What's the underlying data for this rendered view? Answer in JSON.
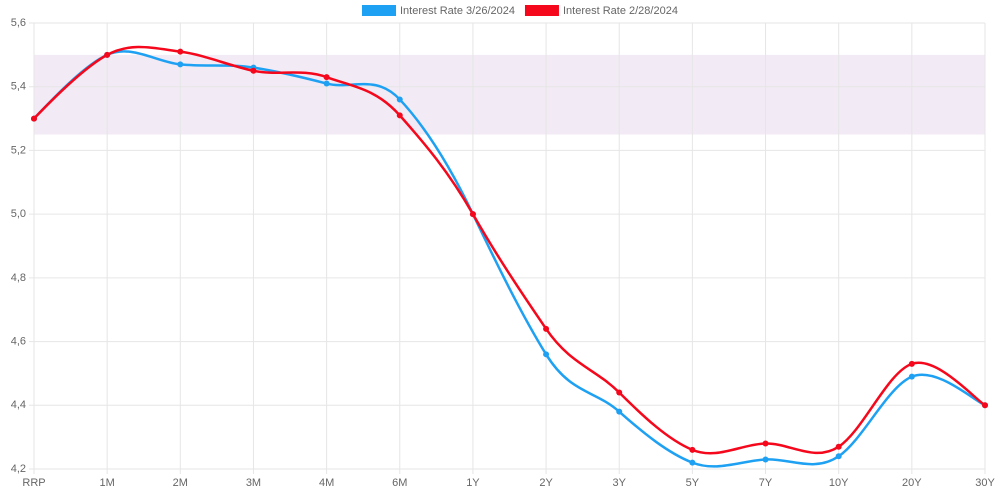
{
  "chart_data": {
    "type": "line",
    "categories": [
      "RRP",
      "1M",
      "2M",
      "3M",
      "4M",
      "6M",
      "1Y",
      "2Y",
      "3Y",
      "5Y",
      "7Y",
      "10Y",
      "20Y",
      "30Y"
    ],
    "series": [
      {
        "name": "Interest Rate 3/26/2024",
        "color": "#1ea1f2",
        "values": [
          5.3,
          5.5,
          5.47,
          5.46,
          5.41,
          5.36,
          5.0,
          4.56,
          4.38,
          4.22,
          4.23,
          4.24,
          4.49,
          4.4
        ]
      },
      {
        "name": "Interest Rate 2/28/2024",
        "color": "#f5081c",
        "values": [
          5.3,
          5.5,
          5.51,
          5.45,
          5.43,
          5.31,
          5.0,
          4.64,
          4.44,
          4.26,
          4.28,
          4.27,
          4.53,
          4.4
        ]
      }
    ],
    "band": {
      "from": 5.25,
      "to": 5.5,
      "color": "#f2eaf5"
    },
    "ylim": [
      4.2,
      5.6
    ],
    "yticks": [
      {
        "value": 4.2,
        "label": "4,2"
      },
      {
        "value": 4.4,
        "label": "4,4"
      },
      {
        "value": 4.6,
        "label": "4,6"
      },
      {
        "value": 4.8,
        "label": "4,8"
      },
      {
        "value": 5.0,
        "label": "5,0"
      },
      {
        "value": 5.2,
        "label": "5,2"
      },
      {
        "value": 5.4,
        "label": "5,4"
      },
      {
        "value": 5.6,
        "label": "5,6"
      }
    ],
    "grid": true
  }
}
